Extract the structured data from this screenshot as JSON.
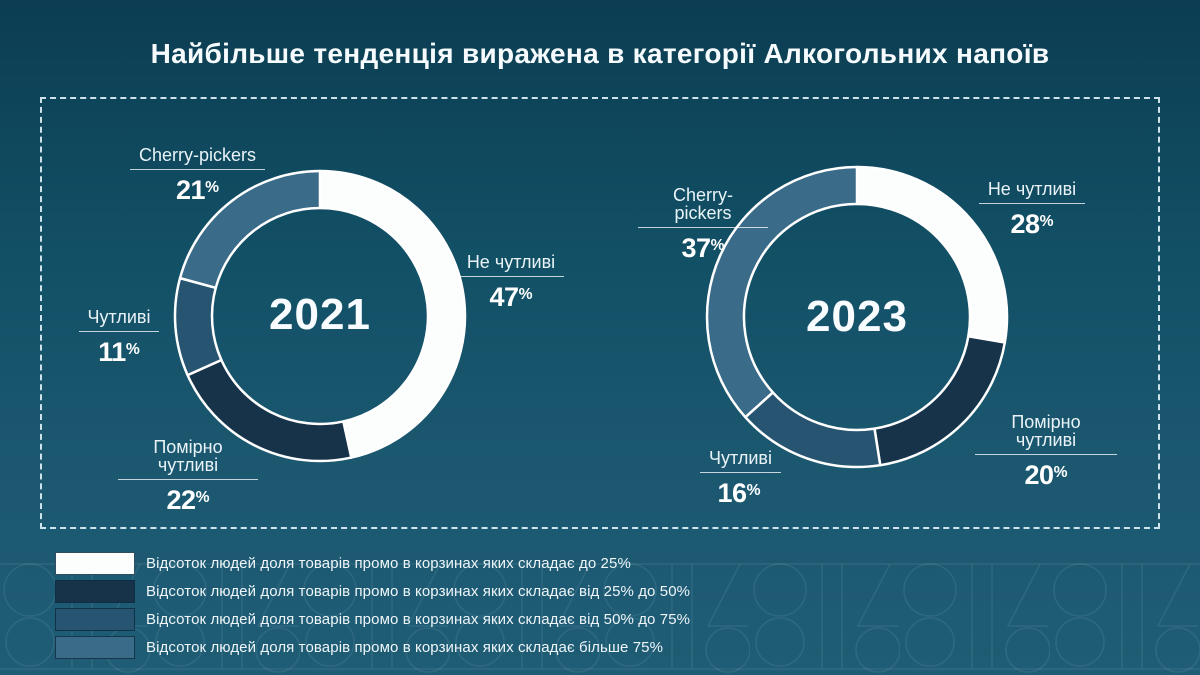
{
  "title": "Найбільше тенденція виражена в категорії Алкогольних напоїв",
  "percent_suffix": "%",
  "colors": {
    "background_top": "#0c3d52",
    "background_bottom": "#1f5c75",
    "slice_white": "#fcfefe",
    "slice_dark_navy": "#16334a",
    "slice_medium_blue": "#275571",
    "slice_steel_blue": "#3a6b89",
    "dashed_frame": "#deeff7",
    "text": "#f6fbfd"
  },
  "chart_data": [
    {
      "type": "pie",
      "variant": "donut",
      "title": "2021",
      "start_angle_deg": -90,
      "direction": "clockwise",
      "slices": [
        {
          "label": "Не чутливі",
          "value": 47,
          "color": "#fcfefe"
        },
        {
          "label": "Помірно чутливі",
          "value": 22,
          "color": "#16334a"
        },
        {
          "label": "Чутливі",
          "value": 11,
          "color": "#275571"
        },
        {
          "label": "Cherry-pickers",
          "value": 21,
          "color": "#3a6b89"
        }
      ]
    },
    {
      "type": "pie",
      "variant": "donut",
      "title": "2023",
      "start_angle_deg": -90,
      "direction": "clockwise",
      "slices": [
        {
          "label": "Не чутливі",
          "value": 28,
          "color": "#fcfefe"
        },
        {
          "label": "Помірно чутливі",
          "value": 20,
          "color": "#16334a"
        },
        {
          "label": "Чутливі",
          "value": 16,
          "color": "#275571"
        },
        {
          "label": "Cherry-pickers",
          "value": 37,
          "color": "#3a6b89"
        }
      ]
    }
  ],
  "legend": {
    "position": "bottom-left",
    "items": [
      {
        "label": "Відсоток людей доля товарів промо в корзинах яких складає до 25%",
        "color": "#fcfefe"
      },
      {
        "label": "Відсоток людей доля товарів промо в корзинах яких складає від 25% до 50%",
        "color": "#16334a"
      },
      {
        "label": "Відсоток людей доля товарів промо в корзинах яких складає від 50% до 75%",
        "color": "#275571"
      },
      {
        "label": "Відсоток людей доля товарів промо в корзинах яких складає більше 75%",
        "color": "#3a6b89"
      }
    ]
  }
}
